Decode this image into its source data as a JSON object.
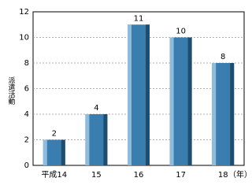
{
  "chart_data": {
    "type": "bar",
    "y_label": "派遣活動",
    "categories": [
      "平成14",
      "15",
      "16",
      "17",
      "18"
    ],
    "x_unit": "（年）",
    "values": [
      2,
      4,
      11,
      10,
      8
    ],
    "color": "#3a7eb0",
    "ylim": [
      0,
      12
    ],
    "yticks": [
      0,
      2,
      4,
      6,
      8,
      10,
      12
    ],
    "grid": true
  }
}
